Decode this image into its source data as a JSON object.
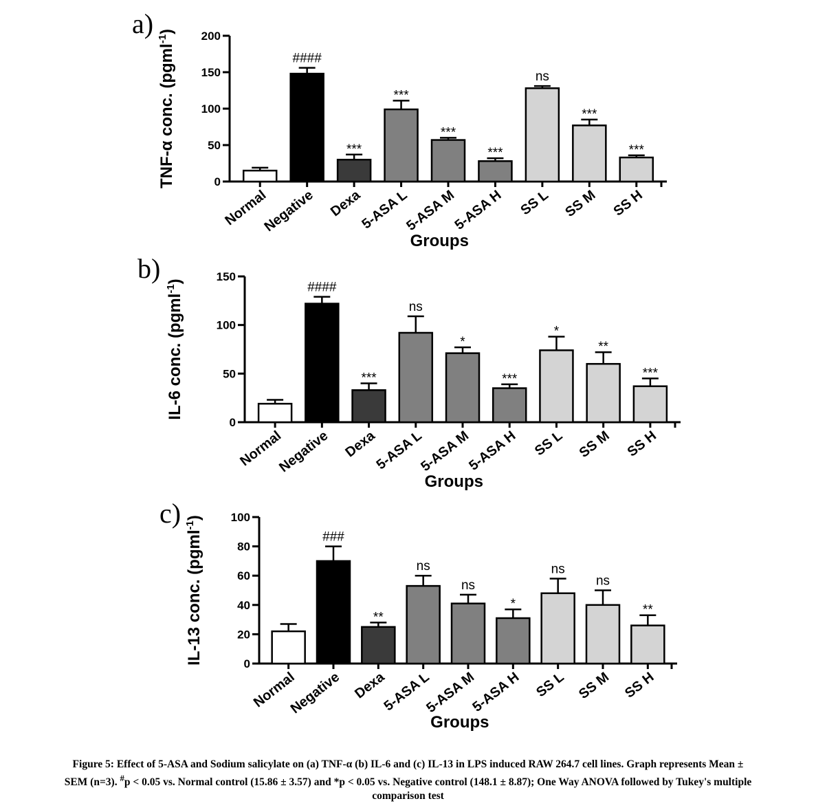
{
  "chart_data": [
    {
      "type": "bar",
      "panel_label": "a)",
      "ylabel": "TNF-α conc. (pgml-1)",
      "ylabel_main": "TNF-α conc. (pgml",
      "ylabel_sup": "-1",
      "ylabel_close": ")",
      "xlabel": "Groups",
      "ylim": [
        0,
        200
      ],
      "yticks": [
        "0",
        "50",
        "100",
        "150",
        "200"
      ],
      "categories": [
        "Normal",
        "Negative",
        "Dexa",
        "5-ASA L",
        "5-ASA M",
        "5-ASA H",
        "SS L",
        "SS M",
        "SS H"
      ],
      "values": [
        15,
        148,
        30,
        99,
        57,
        28,
        128,
        77,
        33
      ],
      "errors": [
        4,
        8,
        7,
        12,
        3,
        4,
        3,
        8,
        3
      ],
      "annotations": [
        "",
        "####",
        "***",
        "***",
        "***",
        "***",
        "ns",
        "***",
        "***"
      ],
      "fills": [
        "#ffffff",
        "#000000",
        "#3a3a3a",
        "#808080",
        "#808080",
        "#808080",
        "#d4d4d4",
        "#d4d4d4",
        "#d4d4d4"
      ]
    },
    {
      "type": "bar",
      "panel_label": "b)",
      "ylabel": "IL-6 conc. (pgml-1)",
      "ylabel_main": "IL-6 conc. (pgml",
      "ylabel_sup": "-1",
      "ylabel_close": ")",
      "xlabel": "Groups",
      "ylim": [
        0,
        150
      ],
      "yticks": [
        "0",
        "50",
        "100",
        "150"
      ],
      "categories": [
        "Normal",
        "Negative",
        "Dexa",
        "5-ASA L",
        "5-ASA M",
        "5-ASA H",
        "SS L",
        "SS M",
        "SS H"
      ],
      "values": [
        19,
        122,
        33,
        92,
        71,
        35,
        74,
        60,
        37
      ],
      "errors": [
        4,
        7,
        7,
        17,
        6,
        4,
        14,
        12,
        8
      ],
      "annotations": [
        "",
        "####",
        "***",
        "ns",
        "*",
        "***",
        "*",
        "**",
        "***"
      ],
      "fills": [
        "#ffffff",
        "#000000",
        "#3a3a3a",
        "#808080",
        "#808080",
        "#808080",
        "#d4d4d4",
        "#d4d4d4",
        "#d4d4d4"
      ]
    },
    {
      "type": "bar",
      "panel_label": "c)",
      "ylabel": "IL-13 conc. (pgml-1)",
      "ylabel_main": "IL-13 conc. (pgml",
      "ylabel_sup": "-1",
      "ylabel_close": ")",
      "xlabel": "Groups",
      "ylim": [
        0,
        100
      ],
      "yticks": [
        "0",
        "20",
        "40",
        "60",
        "80",
        "100"
      ],
      "categories": [
        "Normal",
        "Negative",
        "Dexa",
        "5-ASA L",
        "5-ASA M",
        "5-ASA H",
        "SS L",
        "SS M",
        "SS H"
      ],
      "values": [
        22,
        70,
        25,
        53,
        41,
        31,
        48,
        40,
        26
      ],
      "errors": [
        5,
        10,
        3,
        7,
        6,
        6,
        10,
        10,
        7
      ],
      "annotations": [
        "",
        "###",
        "**",
        "ns",
        "ns",
        "*",
        "ns",
        "ns",
        "**"
      ],
      "fills": [
        "#ffffff",
        "#000000",
        "#3a3a3a",
        "#808080",
        "#808080",
        "#808080",
        "#d4d4d4",
        "#d4d4d4",
        "#d4d4d4"
      ]
    }
  ],
  "caption": {
    "line1": "Figure 5: Effect of 5-ASA and Sodium salicylate on (a) TNF-α (b) IL-6 and (c) IL-13 in LPS induced RAW 264.7 cell lines. Graph represents Mean ±",
    "line2_start": "SEM (n=3).",
    "hash_sup": "#",
    "line2_rest": "p < 0.05 vs. Normal control (15.86 ± 3.57) and *p < 0.05 vs. Negative control (148.1 ± 8.87); One Way ANOVA followed by Tukey's multiple",
    "line3": "comparison test"
  }
}
